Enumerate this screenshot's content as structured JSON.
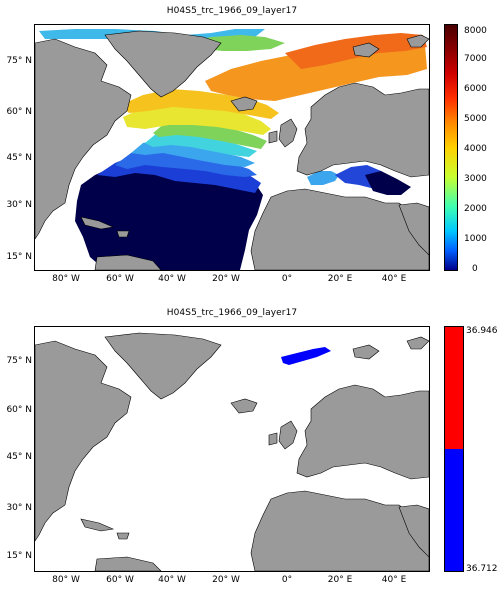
{
  "top": {
    "title": "H04S5_trc_1966_09_layer17",
    "y_ticks": [
      "75° N",
      "60° N",
      "45° N",
      "30° N",
      "15° N"
    ],
    "x_ticks": [
      "80° W",
      "60° W",
      "40° W",
      "20° W",
      "0°",
      "20° E",
      "40° E"
    ],
    "colorbar_ticks": [
      "8000",
      "7000",
      "6000",
      "5000",
      "4000",
      "3000",
      "2000",
      "1000",
      "0"
    ],
    "colorbar_scale": "jet",
    "colorbar_range": [
      0,
      8000
    ]
  },
  "bottom": {
    "title": "H04S5_trc_1966_09_layer17",
    "y_ticks": [
      "75° N",
      "60° N",
      "45° N",
      "30° N",
      "15° N"
    ],
    "x_ticks": [
      "80° W",
      "60° W",
      "40° W",
      "20° W",
      "0°",
      "20° E",
      "40° E"
    ],
    "colorbar_max": "36.946",
    "colorbar_min": "36.712",
    "colorbar_colors": [
      "#ff0000",
      "#0000ff"
    ]
  },
  "colors": {
    "land": "#9a9a9a",
    "ocean_empty": "#ffffff",
    "deep_blue": "#00004a"
  }
}
